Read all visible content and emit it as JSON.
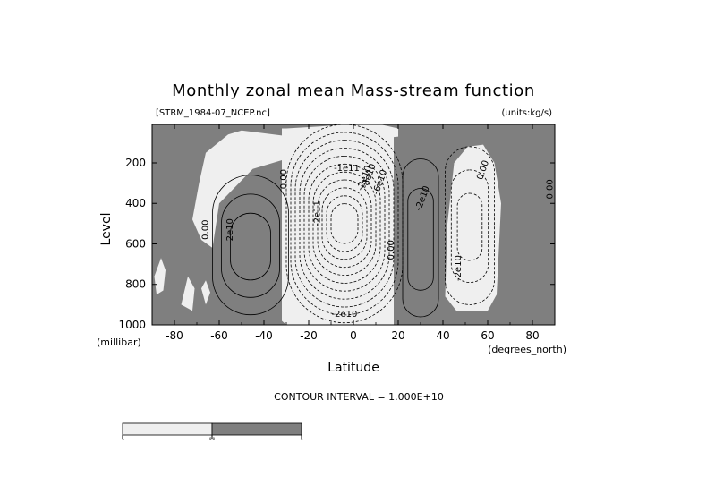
{
  "chart_data": {
    "type": "contour",
    "title": "Monthly zonal mean Mass-stream function",
    "subtitle_left": "[STRM_1984-07_NCEP.nc]",
    "subtitle_right": "(units:kg/s)",
    "xlabel": "Latitude",
    "ylabel": "Level",
    "x_unit_label": "(degrees_north)",
    "y_unit_label": "(millibar)",
    "xlim": [
      -90,
      90
    ],
    "ylim": [
      1000,
      10
    ],
    "y_inverted": true,
    "x_ticks": [
      -80,
      -60,
      -40,
      -20,
      0,
      20,
      40,
      60,
      80
    ],
    "x_tick_labels": [
      "-80",
      "-60",
      "-40",
      "-20",
      "0",
      "20",
      "40",
      "60",
      "80"
    ],
    "y_ticks": [
      200,
      400,
      600,
      800,
      1000
    ],
    "y_tick_labels": [
      "200",
      "400",
      "600",
      "800",
      "1000"
    ],
    "contour_interval_text": "CONTOUR INTERVAL = 1.000E+10",
    "contour_interval": 10000000000.0,
    "shading": {
      "positive_color": "#7f7f7f",
      "negative_color": "#efefef",
      "threshold": 0
    },
    "colorbar": {
      "levels": [
        "-∞",
        "0.0",
        "∞"
      ],
      "colors": [
        "#efefef",
        "#7f7f7f"
      ]
    },
    "contour_labels": [
      {
        "text": "0.00",
        "lat": -65,
        "p": 530,
        "angle": -90
      },
      {
        "text": "2e10",
        "lat": -54,
        "p": 530,
        "angle": -90
      },
      {
        "text": "0.00",
        "lat": -30,
        "p": 280,
        "angle": -90
      },
      {
        "text": "-2e11",
        "lat": -15,
        "p": 450,
        "angle": -90
      },
      {
        "text": "-1e11",
        "lat": -3,
        "p": 240,
        "angle": 0
      },
      {
        "text": "-2e10",
        "lat": 6,
        "p": 280,
        "angle": -70
      },
      {
        "text": "-6e10",
        "lat": 13,
        "p": 300,
        "angle": -70
      },
      {
        "text": "-8e10",
        "lat": 8,
        "p": 270,
        "angle": -70
      },
      {
        "text": "-2e10",
        "lat": -4,
        "p": 960,
        "angle": 0
      },
      {
        "text": "0.00",
        "lat": 18,
        "p": 630,
        "angle": -90
      },
      {
        "text": "-2e10",
        "lat": 32,
        "p": 380,
        "angle": -70
      },
      {
        "text": "-2e10",
        "lat": 48,
        "p": 720,
        "angle": -90
      },
      {
        "text": "0.00",
        "lat": 59,
        "p": 240,
        "angle": -70
      },
      {
        "text": "0.00",
        "lat": 89,
        "p": 330,
        "angle": -90
      }
    ],
    "fields": [
      {
        "sign": "negative",
        "lat_range": [
          -32,
          18
        ],
        "p_range": [
          30,
          1000
        ],
        "center": [
          -2,
          520
        ],
        "peak": -220000000000.0
      },
      {
        "sign": "negative",
        "lat_range": [
          40,
          64
        ],
        "p_range": [
          100,
          930
        ],
        "center": [
          50,
          500
        ],
        "peak": -30000000000.0
      },
      {
        "sign": "positive",
        "lat_range": [
          -65,
          -30
        ],
        "p_range": [
          230,
          960
        ],
        "center": [
          -45,
          650
        ],
        "peak": 30000000000.0
      },
      {
        "sign": "positive",
        "lat_range": [
          20,
          40
        ],
        "p_range": [
          170,
          1000
        ],
        "center": [
          30,
          600
        ],
        "peak": 20000000000.0
      }
    ]
  }
}
